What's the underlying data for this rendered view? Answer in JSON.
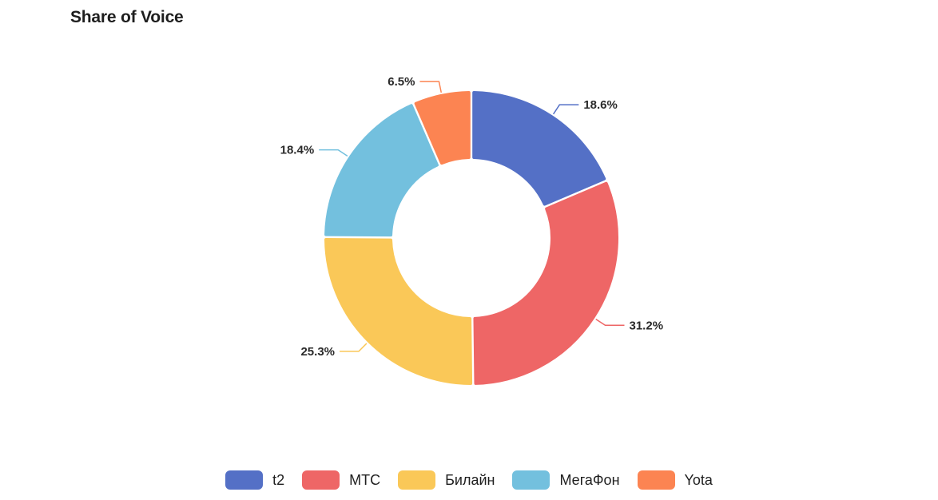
{
  "chart_data": {
    "type": "pie",
    "variant": "donut",
    "title": "Share of Voice",
    "categories": [
      "t2",
      "МТС",
      "Билайн",
      "МегаФон",
      "Yota"
    ],
    "values": [
      18.6,
      31.2,
      25.3,
      18.4,
      6.5
    ],
    "labels": [
      "18.6%",
      "31.2%",
      "25.3%",
      "18.4%",
      "6.5%"
    ],
    "colors": [
      "#5470c6",
      "#ee6666",
      "#fac858",
      "#73c0de",
      "#fc8452"
    ],
    "legend_position": "bottom"
  }
}
